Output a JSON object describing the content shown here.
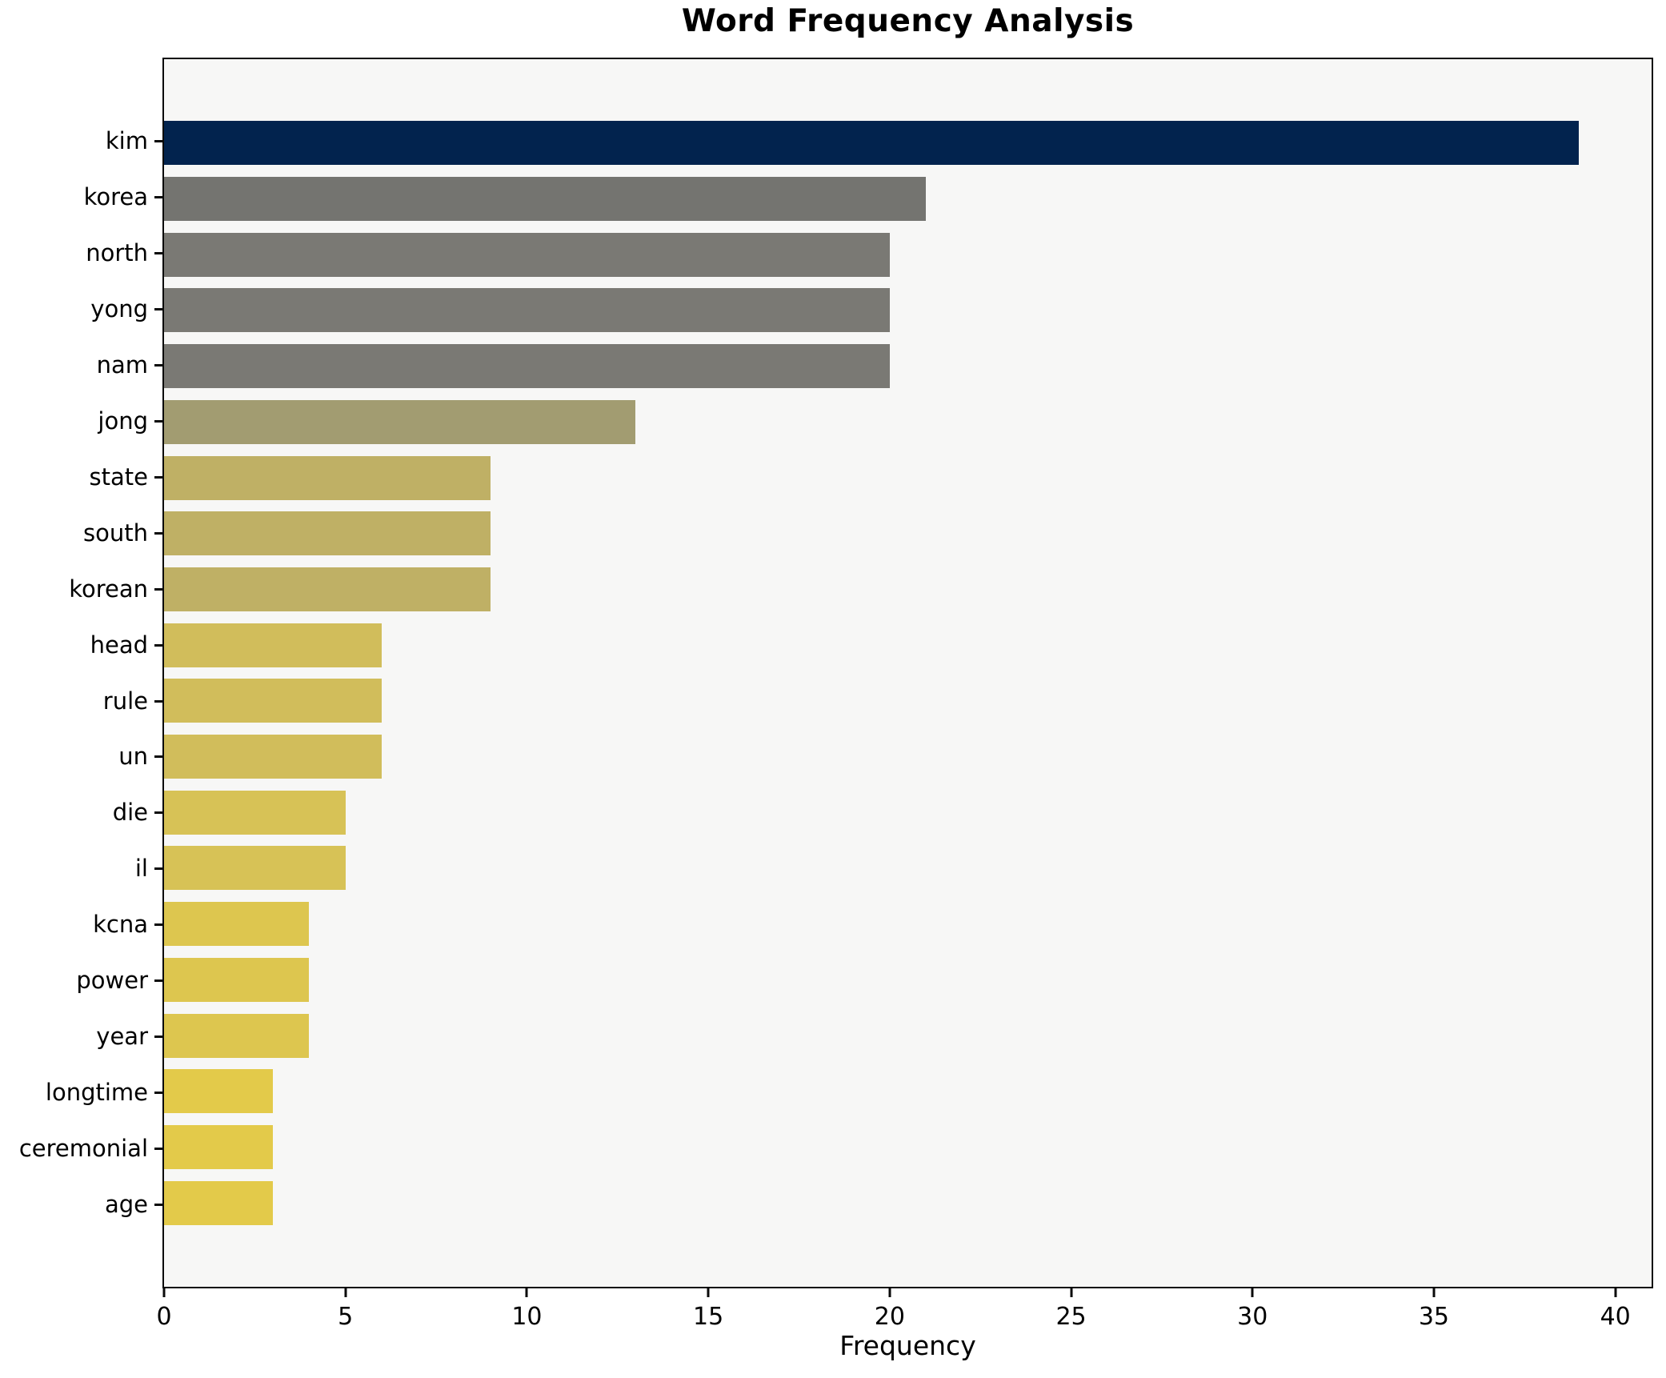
{
  "chart_data": {
    "type": "bar",
    "orientation": "horizontal",
    "title": "Word Frequency Analysis",
    "xlabel": "Frequency",
    "ylabel": "",
    "categories": [
      "kim",
      "korea",
      "north",
      "yong",
      "nam",
      "jong",
      "state",
      "south",
      "korean",
      "head",
      "rule",
      "un",
      "die",
      "il",
      "kcna",
      "power",
      "year",
      "longtime",
      "ceremonial",
      "age"
    ],
    "values": [
      39,
      21,
      20,
      20,
      20,
      13,
      9,
      9,
      9,
      6,
      6,
      6,
      5,
      5,
      4,
      4,
      4,
      3,
      3,
      3
    ],
    "bar_colors": [
      "#02234e",
      "#747470",
      "#7a7974",
      "#7a7974",
      "#7a7974",
      "#a29c71",
      "#bfb065",
      "#bfb065",
      "#bfb065",
      "#d1bd5b",
      "#d1bd5b",
      "#d1bd5b",
      "#d7c256",
      "#d7c256",
      "#ddc64f",
      "#ddc64f",
      "#ddc64f",
      "#e3ca4a",
      "#e3ca4a",
      "#e3ca4a"
    ],
    "xlim": [
      0,
      41
    ],
    "xticks": [
      0,
      5,
      10,
      15,
      20,
      25,
      30,
      35,
      40
    ],
    "grid": false,
    "legend": "none",
    "plot_background": "#f7f7f6",
    "figure_background": "#ffffff",
    "spine_color": "#0a0a0a",
    "text_color": "#000000"
  }
}
